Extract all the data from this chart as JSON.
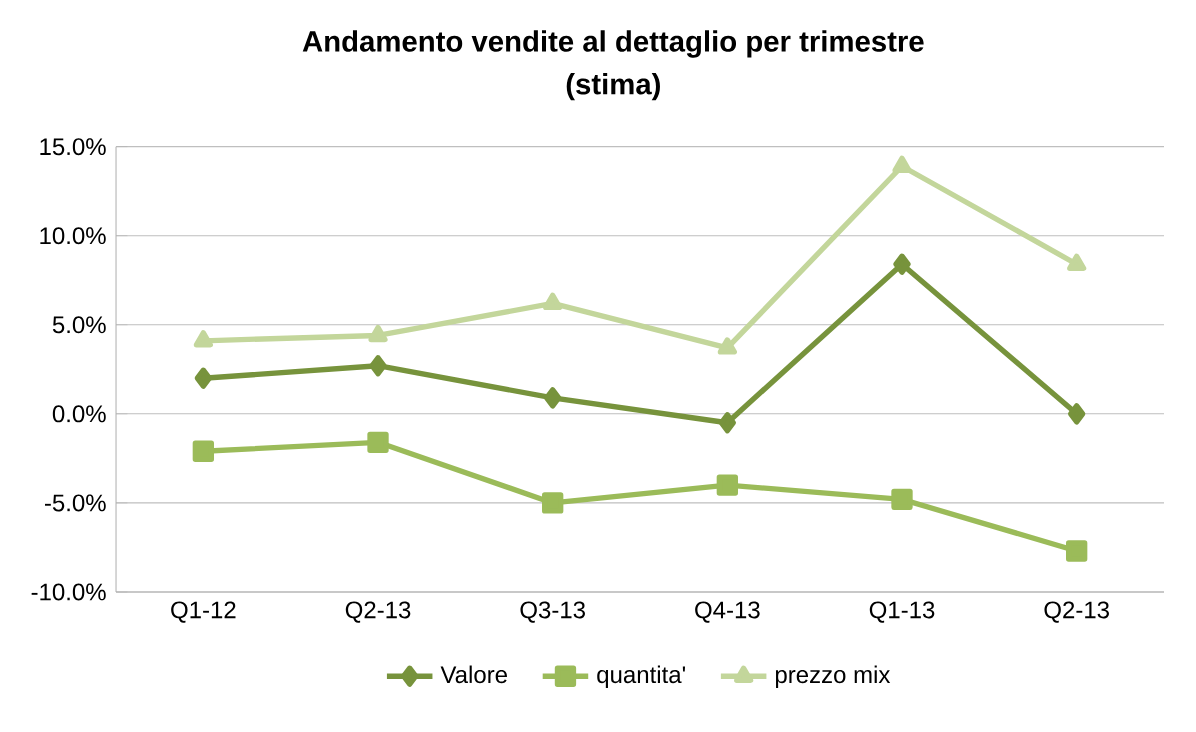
{
  "chart_data": {
    "type": "line",
    "title": "Andamento vendite al dettaglio per trimestre",
    "subtitle": "(stima)",
    "categories": [
      "Q1-12",
      "Q2-13",
      "Q3-13",
      "Q4-13",
      "Q1-13",
      "Q2-13"
    ],
    "series": [
      {
        "name": "Valore",
        "color": "#77933c",
        "marker": "diamond",
        "values": [
          2.0,
          2.7,
          0.9,
          -0.5,
          8.4,
          0.0
        ]
      },
      {
        "name": "quantita'",
        "color": "#9bbb59",
        "marker": "square",
        "values": [
          -2.1,
          -1.6,
          -5.0,
          -4.0,
          -4.8,
          -7.7
        ]
      },
      {
        "name": "prezzo mix",
        "color": "#c3d69b",
        "marker": "triangle",
        "values": [
          4.1,
          4.4,
          6.2,
          3.7,
          13.9,
          8.4
        ]
      }
    ],
    "ylim": [
      -10,
      15
    ],
    "yticks": [
      {
        "value": -10,
        "label": "-10.0%"
      },
      {
        "value": -5,
        "label": "-5.0%"
      },
      {
        "value": 0,
        "label": "0.0%"
      },
      {
        "value": 5,
        "label": "5.0%"
      },
      {
        "value": 10,
        "label": "10.0%"
      },
      {
        "value": 15,
        "label": "15.0%"
      }
    ],
    "grid": "y",
    "legend": "bottom",
    "line_style": "solid"
  }
}
